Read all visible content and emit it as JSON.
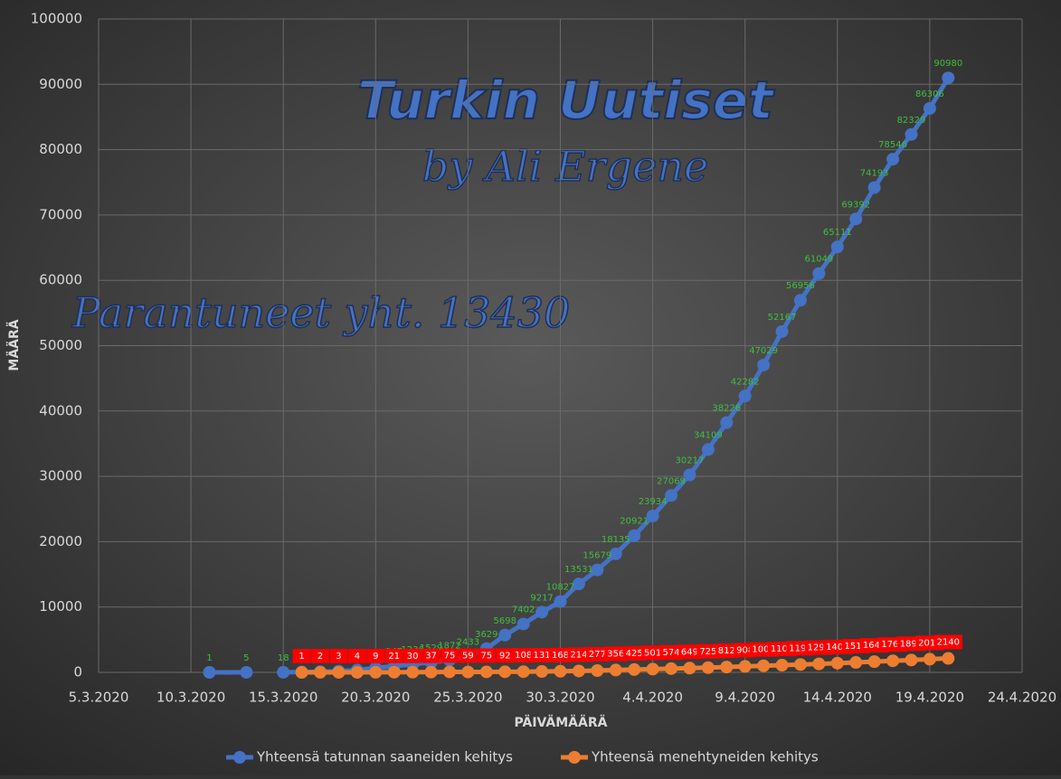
{
  "chart_data": {
    "type": "line",
    "watermark_title": "Turkin Uutiset",
    "watermark_subtitle": "by Ali Ergene",
    "annotation": "Parantuneet yht. 13430",
    "x_label": "PÄIVÄMÄÄRÄ",
    "y_label": "MÄÄRÄ",
    "x": [
      "11.3.2020",
      "13.3.2020",
      "14.3.2020",
      "15.3.2020",
      "16.3.2020",
      "17.3.2020",
      "18.3.2020",
      "19.3.2020",
      "20.3.2020",
      "21.3.2020",
      "22.3.2020",
      "23.3.2020",
      "24.3.2020",
      "25.3.2020",
      "26.3.2020",
      "27.3.2020",
      "28.3.2020",
      "29.3.2020",
      "30.3.2020",
      "31.3.2020",
      "1.4.2020",
      "2.4.2020",
      "3.4.2020",
      "4.4.2020",
      "5.4.2020",
      "6.4.2020",
      "7.4.2020",
      "8.4.2020",
      "9.4.2020",
      "10.4.2020",
      "11.4.2020",
      "12.4.2020",
      "13.4.2020",
      "14.4.2020",
      "15.4.2020",
      "16.4.2020",
      "17.4.2020",
      "18.4.2020",
      "19.4.2020",
      "20.4.2020"
    ],
    "series": [
      {
        "name": "Yhteensä tatunnan saaneiden kehitys",
        "color": "#4472c4",
        "label_color": "#3fbf3f",
        "label_style": "text",
        "values": [
          1,
          5,
          null,
          18,
          47,
          98,
          191,
          359,
          670,
          947,
          1236,
          1529,
          1872,
          2433,
          3629,
          5698,
          7402,
          9217,
          10827,
          13531,
          15679,
          18135,
          20921,
          23934,
          27069,
          30217,
          34109,
          38226,
          42282,
          47029,
          52167,
          56956,
          61049,
          65111,
          69392,
          74193,
          78546,
          82329,
          86306,
          90980
        ]
      },
      {
        "name": "Yhteensä menehtyneiden kehitys",
        "color": "#ed7d31",
        "label_color": "#ff0000",
        "label_style": "box",
        "values": [
          null,
          null,
          null,
          null,
          1,
          2,
          3,
          4,
          9,
          21,
          30,
          37,
          75,
          59,
          75,
          92,
          108,
          131,
          168,
          214,
          277,
          356,
          425,
          501,
          574,
          649,
          725,
          812,
          908,
          1006,
          1101,
          1198,
          1296,
          1403,
          1518,
          1643,
          1769,
          1890,
          2017,
          2140
        ]
      }
    ],
    "xlim": [
      "5.3.2020",
      "24.4.2020"
    ],
    "xticks": [
      "5.3.2020",
      "10.3.2020",
      "15.3.2020",
      "20.3.2020",
      "25.3.2020",
      "30.3.2020",
      "4.4.2020",
      "9.4.2020",
      "14.4.2020",
      "19.4.2020",
      "24.4.2020"
    ],
    "ylim": [
      0,
      100000
    ],
    "yticks": [
      0,
      10000,
      20000,
      30000,
      40000,
      50000,
      60000,
      70000,
      80000,
      90000,
      100000
    ],
    "grid": true,
    "legend": "bottom"
  }
}
